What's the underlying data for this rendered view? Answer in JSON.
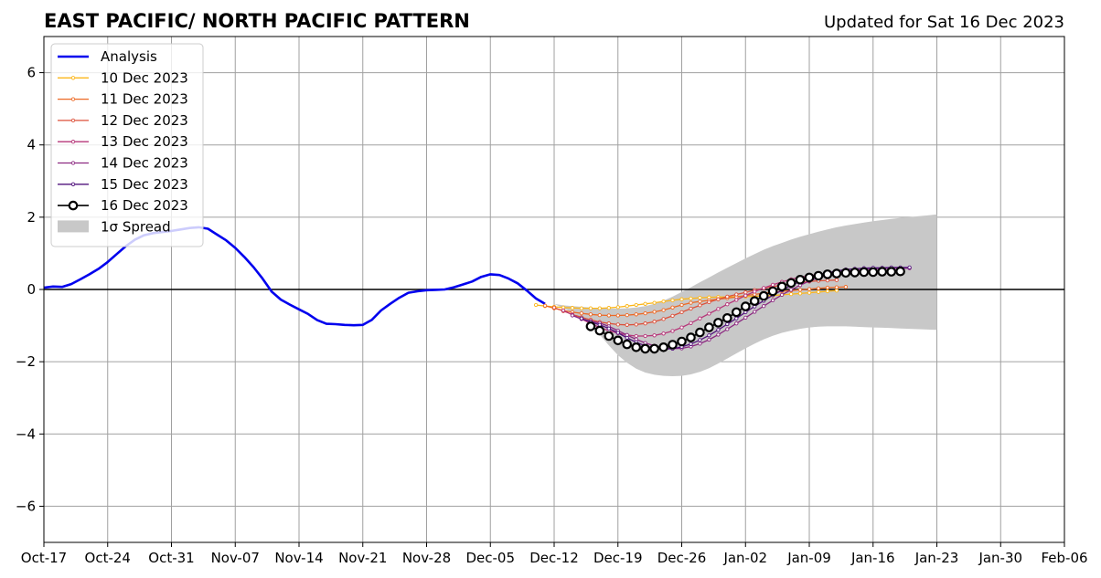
{
  "chart_data": {
    "type": "line",
    "title": "EAST PACIFIC/ NORTH PACIFIC PATTERN",
    "subtitle": "Updated for Sat 16 Dec 2023",
    "xlim": [
      "2023-10-17",
      "2024-02-06"
    ],
    "ylim": [
      -7,
      7
    ],
    "x_ticks": [
      "2023-10-17",
      "2023-10-24",
      "2023-10-31",
      "2023-11-07",
      "2023-11-14",
      "2023-11-21",
      "2023-11-28",
      "2023-12-05",
      "2023-12-12",
      "2023-12-19",
      "2023-12-26",
      "2024-01-02",
      "2024-01-09",
      "2024-01-16",
      "2024-01-23",
      "2024-01-30",
      "2024-02-06"
    ],
    "x_tick_labels": [
      "Oct-17",
      "Oct-24",
      "Oct-31",
      "Nov-07",
      "Nov-14",
      "Nov-21",
      "Nov-28",
      "Dec-05",
      "Dec-12",
      "Dec-19",
      "Dec-26",
      "Jan-02",
      "Jan-09",
      "Jan-16",
      "Jan-23",
      "Jan-30",
      "Feb-06"
    ],
    "y_ticks": [
      -6,
      -4,
      -2,
      0,
      2,
      4,
      6
    ],
    "y_tick_labels": [
      "−6",
      "−4",
      "−2",
      "0",
      "2",
      "4",
      "6"
    ],
    "grid": true,
    "legend": {
      "position": "top-left",
      "entries": [
        "Analysis",
        "10 Dec 2023",
        "11 Dec 2023",
        "12 Dec 2023",
        "13 Dec 2023",
        "14 Dec 2023",
        "15 Dec 2023",
        "16 Dec 2023",
        "1σ Spread"
      ]
    },
    "analysis": {
      "name": "Analysis",
      "color": "#0000ee",
      "start": "2023-10-17",
      "values": [
        0.05,
        0.08,
        0.07,
        0.15,
        0.28,
        0.42,
        0.57,
        0.76,
        0.98,
        1.2,
        1.38,
        1.5,
        1.56,
        1.59,
        1.62,
        1.66,
        1.7,
        1.72,
        1.68,
        1.52,
        1.36,
        1.15,
        0.9,
        0.62,
        0.3,
        -0.06,
        -0.28,
        -0.42,
        -0.55,
        -0.68,
        -0.85,
        -0.95,
        -0.96,
        -0.98,
        -0.99,
        -0.98,
        -0.84,
        -0.58,
        -0.4,
        -0.23,
        -0.09,
        -0.05,
        -0.02,
        -0.01,
        0.0,
        0.06,
        0.14,
        0.22,
        0.35,
        0.42,
        0.4,
        0.3,
        0.17,
        -0.03,
        -0.25,
        -0.4
      ]
    },
    "series": [
      {
        "name": "10 Dec 2023",
        "color": "#fbb61a",
        "start": "2023-12-10",
        "values": [
          -0.43,
          -0.46,
          -0.48,
          -0.5,
          -0.51,
          -0.52,
          -0.52,
          -0.52,
          -0.51,
          -0.49,
          -0.46,
          -0.43,
          -0.4,
          -0.37,
          -0.33,
          -0.3,
          -0.27,
          -0.25,
          -0.23,
          -0.22,
          -0.21,
          -0.21,
          -0.2,
          -0.2,
          -0.19,
          -0.18,
          -0.17,
          -0.15,
          -0.13,
          -0.11,
          -0.09,
          -0.07,
          -0.05,
          -0.03
        ]
      },
      {
        "name": "11 Dec 2023",
        "color": "#ed6925",
        "start": "2023-12-11",
        "values": [
          -0.45,
          -0.52,
          -0.58,
          -0.63,
          -0.66,
          -0.69,
          -0.71,
          -0.72,
          -0.72,
          -0.71,
          -0.69,
          -0.66,
          -0.62,
          -0.57,
          -0.5,
          -0.43,
          -0.37,
          -0.33,
          -0.3,
          -0.27,
          -0.24,
          -0.21,
          -0.17,
          -0.14,
          -0.1,
          -0.08,
          -0.05,
          -0.03,
          -0.01,
          0.01,
          0.03,
          0.05,
          0.06,
          0.07
        ]
      },
      {
        "name": "12 Dec 2023",
        "color": "#dd513a",
        "start": "2023-12-12",
        "values": [
          -0.5,
          -0.6,
          -0.69,
          -0.77,
          -0.84,
          -0.9,
          -0.94,
          -0.97,
          -0.98,
          -0.97,
          -0.94,
          -0.89,
          -0.82,
          -0.73,
          -0.63,
          -0.53,
          -0.44,
          -0.35,
          -0.27,
          -0.2,
          -0.14,
          -0.08,
          -0.02,
          0.03,
          0.08,
          0.12,
          0.16,
          0.19,
          0.22,
          0.24,
          0.25,
          0.26
        ]
      },
      {
        "name": "13 Dec 2023",
        "color": "#b63679",
        "start": "2023-12-13",
        "values": [
          -0.58,
          -0.7,
          -0.82,
          -0.94,
          -1.05,
          -1.14,
          -1.21,
          -1.26,
          -1.29,
          -1.29,
          -1.27,
          -1.22,
          -1.15,
          -1.05,
          -0.93,
          -0.8,
          -0.67,
          -0.54,
          -0.41,
          -0.29,
          -0.17,
          -0.06,
          0.04,
          0.13,
          0.21,
          0.28,
          0.34,
          0.38,
          0.42,
          0.45,
          0.47,
          0.48,
          0.49,
          0.5,
          0.51,
          0.51
        ]
      },
      {
        "name": "14 Dec 2023",
        "color": "#8c2981",
        "start": "2023-12-14",
        "values": [
          -0.72,
          -0.82,
          -0.88,
          -0.93,
          -1.02,
          -1.14,
          -1.26,
          -1.38,
          -1.48,
          -1.56,
          -1.62,
          -1.64,
          -1.63,
          -1.58,
          -1.5,
          -1.39,
          -1.25,
          -1.1,
          -0.94,
          -0.78,
          -0.62,
          -0.46,
          -0.3,
          -0.15,
          -0.01,
          0.12,
          0.23,
          0.32,
          0.39,
          0.45,
          0.5,
          0.53,
          0.55,
          0.57,
          0.58,
          0.59,
          0.59,
          0.59
        ]
      },
      {
        "name": "15 Dec 2023",
        "color": "#51127c",
        "start": "2023-12-15",
        "values": [
          -0.8,
          -0.9,
          -0.98,
          -1.08,
          -1.2,
          -1.34,
          -1.46,
          -1.56,
          -1.62,
          -1.65,
          -1.64,
          -1.59,
          -1.51,
          -1.4,
          -1.27,
          -1.12,
          -0.96,
          -0.8,
          -0.63,
          -0.47,
          -0.31,
          -0.16,
          -0.02,
          0.11,
          0.22,
          0.32,
          0.4,
          0.46,
          0.51,
          0.55,
          0.57,
          0.59,
          0.6,
          0.6,
          0.61,
          0.61,
          0.61
        ]
      },
      {
        "name": "16 Dec 2023",
        "color": "#000000",
        "start": "2023-12-16",
        "values": [
          -1.02,
          -1.14,
          -1.29,
          -1.41,
          -1.52,
          -1.6,
          -1.64,
          -1.64,
          -1.6,
          -1.53,
          -1.44,
          -1.33,
          -1.19,
          -1.05,
          -0.92,
          -0.79,
          -0.63,
          -0.47,
          -0.32,
          -0.18,
          -0.05,
          0.08,
          0.18,
          0.27,
          0.33,
          0.38,
          0.42,
          0.44,
          0.46,
          0.47,
          0.48,
          0.48,
          0.49,
          0.49,
          0.5
        ]
      }
    ],
    "spread": {
      "name": "1σ Spread",
      "color": "#c8c8c8",
      "start": "2023-12-12",
      "upper": [
        -0.4,
        -0.44,
        -0.46,
        -0.48,
        -0.5,
        -0.52,
        -0.53,
        -0.53,
        -0.52,
        -0.5,
        -0.46,
        -0.4,
        -0.31,
        -0.2,
        -0.07,
        0.06,
        0.2,
        0.33,
        0.47,
        0.6,
        0.73,
        0.86,
        0.98,
        1.1,
        1.2,
        1.29,
        1.38,
        1.46,
        1.53,
        1.6,
        1.66,
        1.72,
        1.77,
        1.81,
        1.85,
        1.89,
        1.92,
        1.95,
        1.98,
        2.0,
        2.03,
        2.05,
        2.08
      ],
      "lower": [
        -0.4,
        -0.52,
        -0.64,
        -0.8,
        -1.0,
        -1.25,
        -1.55,
        -1.82,
        -2.03,
        -2.19,
        -2.3,
        -2.36,
        -2.39,
        -2.4,
        -2.39,
        -2.35,
        -2.28,
        -2.18,
        -2.05,
        -1.91,
        -1.77,
        -1.63,
        -1.5,
        -1.38,
        -1.28,
        -1.2,
        -1.14,
        -1.09,
        -1.05,
        -1.03,
        -1.02,
        -1.02,
        -1.02,
        -1.03,
        -1.04,
        -1.05,
        -1.06,
        -1.07,
        -1.08,
        -1.09,
        -1.1,
        -1.11,
        -1.12
      ]
    }
  }
}
